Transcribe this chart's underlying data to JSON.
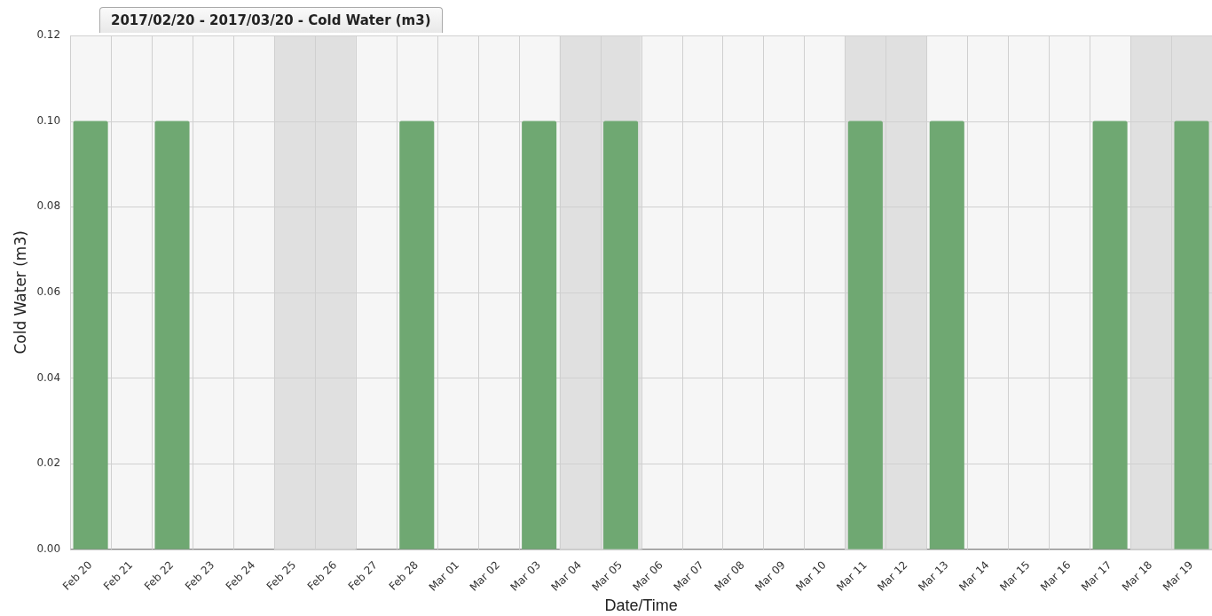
{
  "chart_data": {
    "type": "bar",
    "title": "2017/02/20 - 2017/03/20 - Cold Water (m3)",
    "xlabel": "Date/Time",
    "ylabel": "Cold Water (m3)",
    "categories": [
      "Feb 20",
      "Feb 21",
      "Feb 22",
      "Feb 23",
      "Feb 24",
      "Feb 25",
      "Feb 26",
      "Feb 27",
      "Feb 28",
      "Mar 01",
      "Mar 02",
      "Mar 03",
      "Mar 04",
      "Mar 05",
      "Mar 06",
      "Mar 07",
      "Mar 08",
      "Mar 09",
      "Mar 10",
      "Mar 11",
      "Mar 12",
      "Mar 13",
      "Mar 14",
      "Mar 15",
      "Mar 16",
      "Mar 17",
      "Mar 18",
      "Mar 19"
    ],
    "series": [
      {
        "color": "#6fa872",
        "values": [
          0.1,
          0,
          0.1,
          0,
          0,
          0,
          0,
          0,
          0.1,
          0,
          0,
          0.1,
          0,
          0.1,
          0,
          0,
          0,
          0,
          0,
          0.1,
          0,
          0.1,
          0,
          0,
          0,
          0.1,
          0,
          0.1
        ]
      }
    ],
    "ylim": [
      0,
      0.12
    ],
    "yticks": [
      {
        "value": 0,
        "label": "0.00"
      },
      {
        "value": 0.02,
        "label": "0.02"
      },
      {
        "value": 0.04,
        "label": "0.04"
      },
      {
        "value": 0.06,
        "label": "0.06"
      },
      {
        "value": 0.08,
        "label": "0.08"
      },
      {
        "value": 0.1,
        "label": "0.10"
      },
      {
        "value": 0.12,
        "label": "0.12"
      }
    ],
    "bands": [
      {
        "axis": "x",
        "from": "Feb 25",
        "to": "Feb 26",
        "color": "#e0e0e0"
      },
      {
        "axis": "x",
        "from": "Mar 04",
        "to": "Mar 05",
        "color": "#e0e0e0"
      },
      {
        "axis": "x",
        "from": "Mar 11",
        "to": "Mar 12",
        "color": "#e0e0e0"
      },
      {
        "axis": "x",
        "from": "Mar 18",
        "to": "Mar 19",
        "color": "#e0e0e0"
      }
    ],
    "grid": true,
    "legend": false
  }
}
